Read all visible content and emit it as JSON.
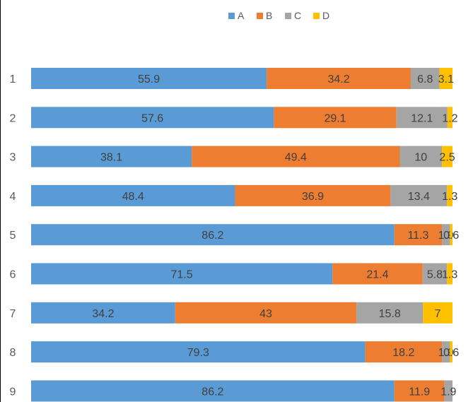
{
  "chart_data": {
    "type": "bar",
    "orientation": "horizontal",
    "stacked": true,
    "categories": [
      "1",
      "2",
      "3",
      "4",
      "5",
      "6",
      "7",
      "8",
      "9"
    ],
    "series": [
      {
        "name": "A",
        "color": "#5B9BD5",
        "values": [
          55.9,
          57.6,
          38.1,
          48.4,
          86.2,
          71.5,
          34.2,
          79.3,
          86.2
        ]
      },
      {
        "name": "B",
        "color": "#ED7D31",
        "values": [
          34.2,
          29.1,
          49.4,
          36.9,
          11.3,
          21.4,
          43,
          18.2,
          11.9
        ]
      },
      {
        "name": "C",
        "color": "#A5A5A5",
        "values": [
          6.8,
          12.1,
          10,
          13.4,
          1.9,
          5.8,
          15.8,
          1.9,
          1.9
        ]
      },
      {
        "name": "D",
        "color": "#FFC000",
        "values": [
          3.1,
          1.2,
          2.5,
          1.3,
          0.6,
          1.3,
          7,
          0.6,
          0
        ]
      }
    ],
    "data_labels": [
      [
        "55.9",
        "34.2",
        "6.8",
        "3.1"
      ],
      [
        "57.6",
        "29.1",
        "12.1",
        "1.2"
      ],
      [
        "38.1",
        "49.4",
        "10",
        "2.5"
      ],
      [
        "48.4",
        "36.9",
        "13.4",
        "1.3"
      ],
      [
        "86.2",
        "11.3",
        "1.9",
        "0.6"
      ],
      [
        "71.5",
        "21.4",
        "5.8",
        "1.3"
      ],
      [
        "34.2",
        "43",
        "15.8",
        "7"
      ],
      [
        "79.3",
        "18.2",
        "1.9",
        "0.6"
      ],
      [
        "86.2",
        "11.9",
        "1.9",
        ""
      ]
    ],
    "legend_position": "top",
    "grid": false,
    "xlim": [
      0,
      100
    ]
  }
}
